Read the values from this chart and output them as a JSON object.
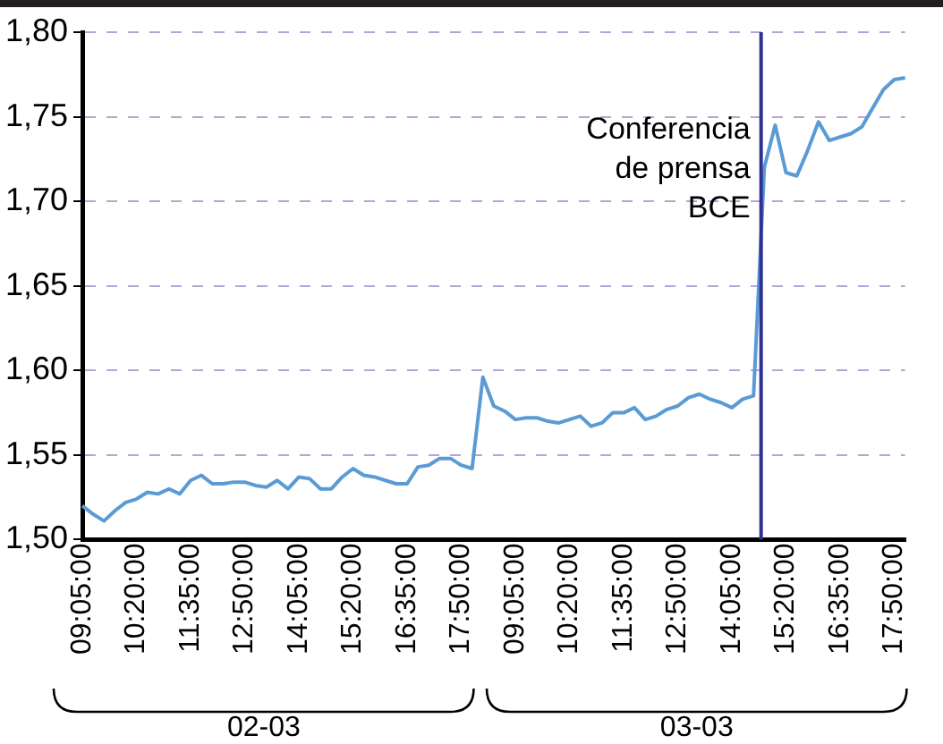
{
  "chart_data": {
    "type": "line",
    "categories": [
      "09:05:00",
      null,
      null,
      null,
      null,
      "10:20:00",
      null,
      null,
      null,
      null,
      "11:35:00",
      null,
      null,
      null,
      null,
      "12:50:00",
      null,
      null,
      null,
      null,
      "14:05:00",
      null,
      null,
      null,
      null,
      "15:20:00",
      null,
      null,
      null,
      null,
      "16:35:00",
      null,
      null,
      null,
      null,
      "17:50:00",
      null,
      null,
      null,
      null,
      "09:05:00",
      null,
      null,
      null,
      null,
      "10:20:00",
      null,
      null,
      null,
      null,
      "11:35:00",
      null,
      null,
      null,
      null,
      "12:50:00",
      null,
      null,
      null,
      null,
      "14:05:00",
      null,
      null,
      null,
      null,
      "15:20:00",
      null,
      null,
      null,
      null,
      "16:35:00",
      null,
      null,
      null,
      null,
      "17:50:00",
      null
    ],
    "series": [
      {
        "color": "#5b9bd5",
        "values": [
          1.52,
          1.515,
          1.511,
          1.517,
          1.522,
          1.524,
          1.528,
          1.527,
          1.53,
          1.527,
          1.535,
          1.538,
          1.533,
          1.533,
          1.534,
          1.534,
          1.532,
          1.531,
          1.535,
          1.53,
          1.537,
          1.536,
          1.53,
          1.53,
          1.537,
          1.542,
          1.538,
          1.537,
          1.535,
          1.533,
          1.533,
          1.543,
          1.544,
          1.548,
          1.548,
          1.544,
          1.542,
          1.596,
          1.579,
          1.576,
          1.571,
          1.572,
          1.572,
          1.57,
          1.569,
          1.571,
          1.573,
          1.567,
          1.569,
          1.575,
          1.575,
          1.578,
          1.571,
          1.573,
          1.577,
          1.579,
          1.584,
          1.586,
          1.583,
          1.581,
          1.578,
          1.583,
          1.585,
          1.72,
          1.745,
          1.717,
          1.715,
          1.73,
          1.747,
          1.736,
          1.738,
          1.74,
          1.744,
          1.755,
          1.766,
          1.772,
          1.773
        ]
      }
    ],
    "ylim": [
      1.5,
      1.8
    ],
    "yticks": [
      {
        "value": 1.5,
        "label": "1,50"
      },
      {
        "value": 1.55,
        "label": "1,55"
      },
      {
        "value": 1.6,
        "label": "1,60"
      },
      {
        "value": 1.65,
        "label": "1,65"
      },
      {
        "value": 1.7,
        "label": "1,70"
      },
      {
        "value": 1.75,
        "label": "1,75"
      },
      {
        "value": 1.8,
        "label": "1,80"
      }
    ],
    "grid": "y",
    "legend": false,
    "marker": "none",
    "line_style": "solid",
    "annotations": [
      "Conferencia de prensa BCE",
      "02-03",
      "03-03"
    ]
  }
}
